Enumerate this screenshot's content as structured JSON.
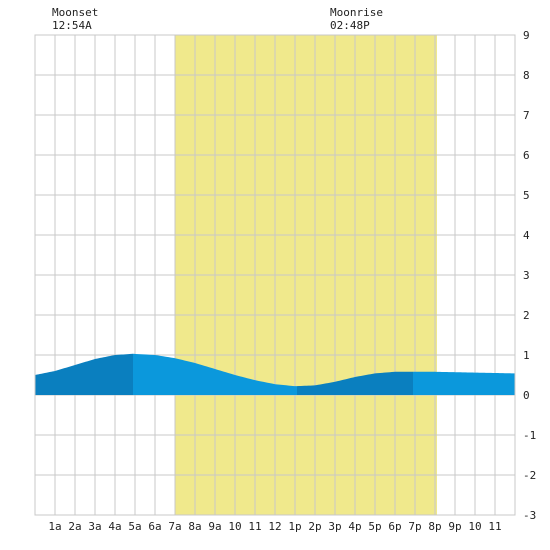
{
  "chart_data": {
    "type": "area",
    "x_unit": "hour of day",
    "xlim": [
      0,
      24
    ],
    "ylim": [
      -3,
      9
    ],
    "y_ticks": [
      "-3",
      "-2",
      "-1",
      "0",
      "1",
      "2",
      "3",
      "4",
      "5",
      "6",
      "7",
      "8",
      "9"
    ],
    "x_tick_labels": [
      "1a",
      "2a",
      "3a",
      "4a",
      "5a",
      "6a",
      "7a",
      "8a",
      "9a",
      "10",
      "11",
      "12",
      "1p",
      "2p",
      "3p",
      "4p",
      "5p",
      "6p",
      "7p",
      "8p",
      "9p",
      "10",
      "11"
    ],
    "grid": true,
    "daylight": {
      "start": 7.0,
      "end": 20.1
    },
    "moon": {
      "moonset": {
        "label": "Moonset",
        "time": "12:54A",
        "hour": 0.9
      },
      "moonrise": {
        "label": "Moonrise",
        "time": "02:48P",
        "hour": 14.8
      }
    },
    "tide": {
      "x": [
        0,
        1,
        2,
        3,
        4,
        4.9,
        6,
        7,
        8,
        9,
        10,
        11,
        12,
        13,
        14,
        15,
        16,
        17,
        18,
        19,
        20,
        21,
        22,
        23,
        24
      ],
      "y": [
        0.5,
        0.6,
        0.75,
        0.9,
        1.0,
        1.03,
        1.0,
        0.92,
        0.8,
        0.65,
        0.5,
        0.37,
        0.27,
        0.22,
        0.24,
        0.33,
        0.45,
        0.54,
        0.58,
        0.58,
        0.58,
        0.57,
        0.56,
        0.55,
        0.54
      ]
    },
    "shading_breaks": [
      4.9,
      13.1,
      18.9
    ],
    "colors": {
      "daylight": "#f0e98c",
      "tide_light": "#0b98dc",
      "tide_dark": "#0a7fbf",
      "grid": "#c8c8c8",
      "background": "#ffffff"
    }
  }
}
